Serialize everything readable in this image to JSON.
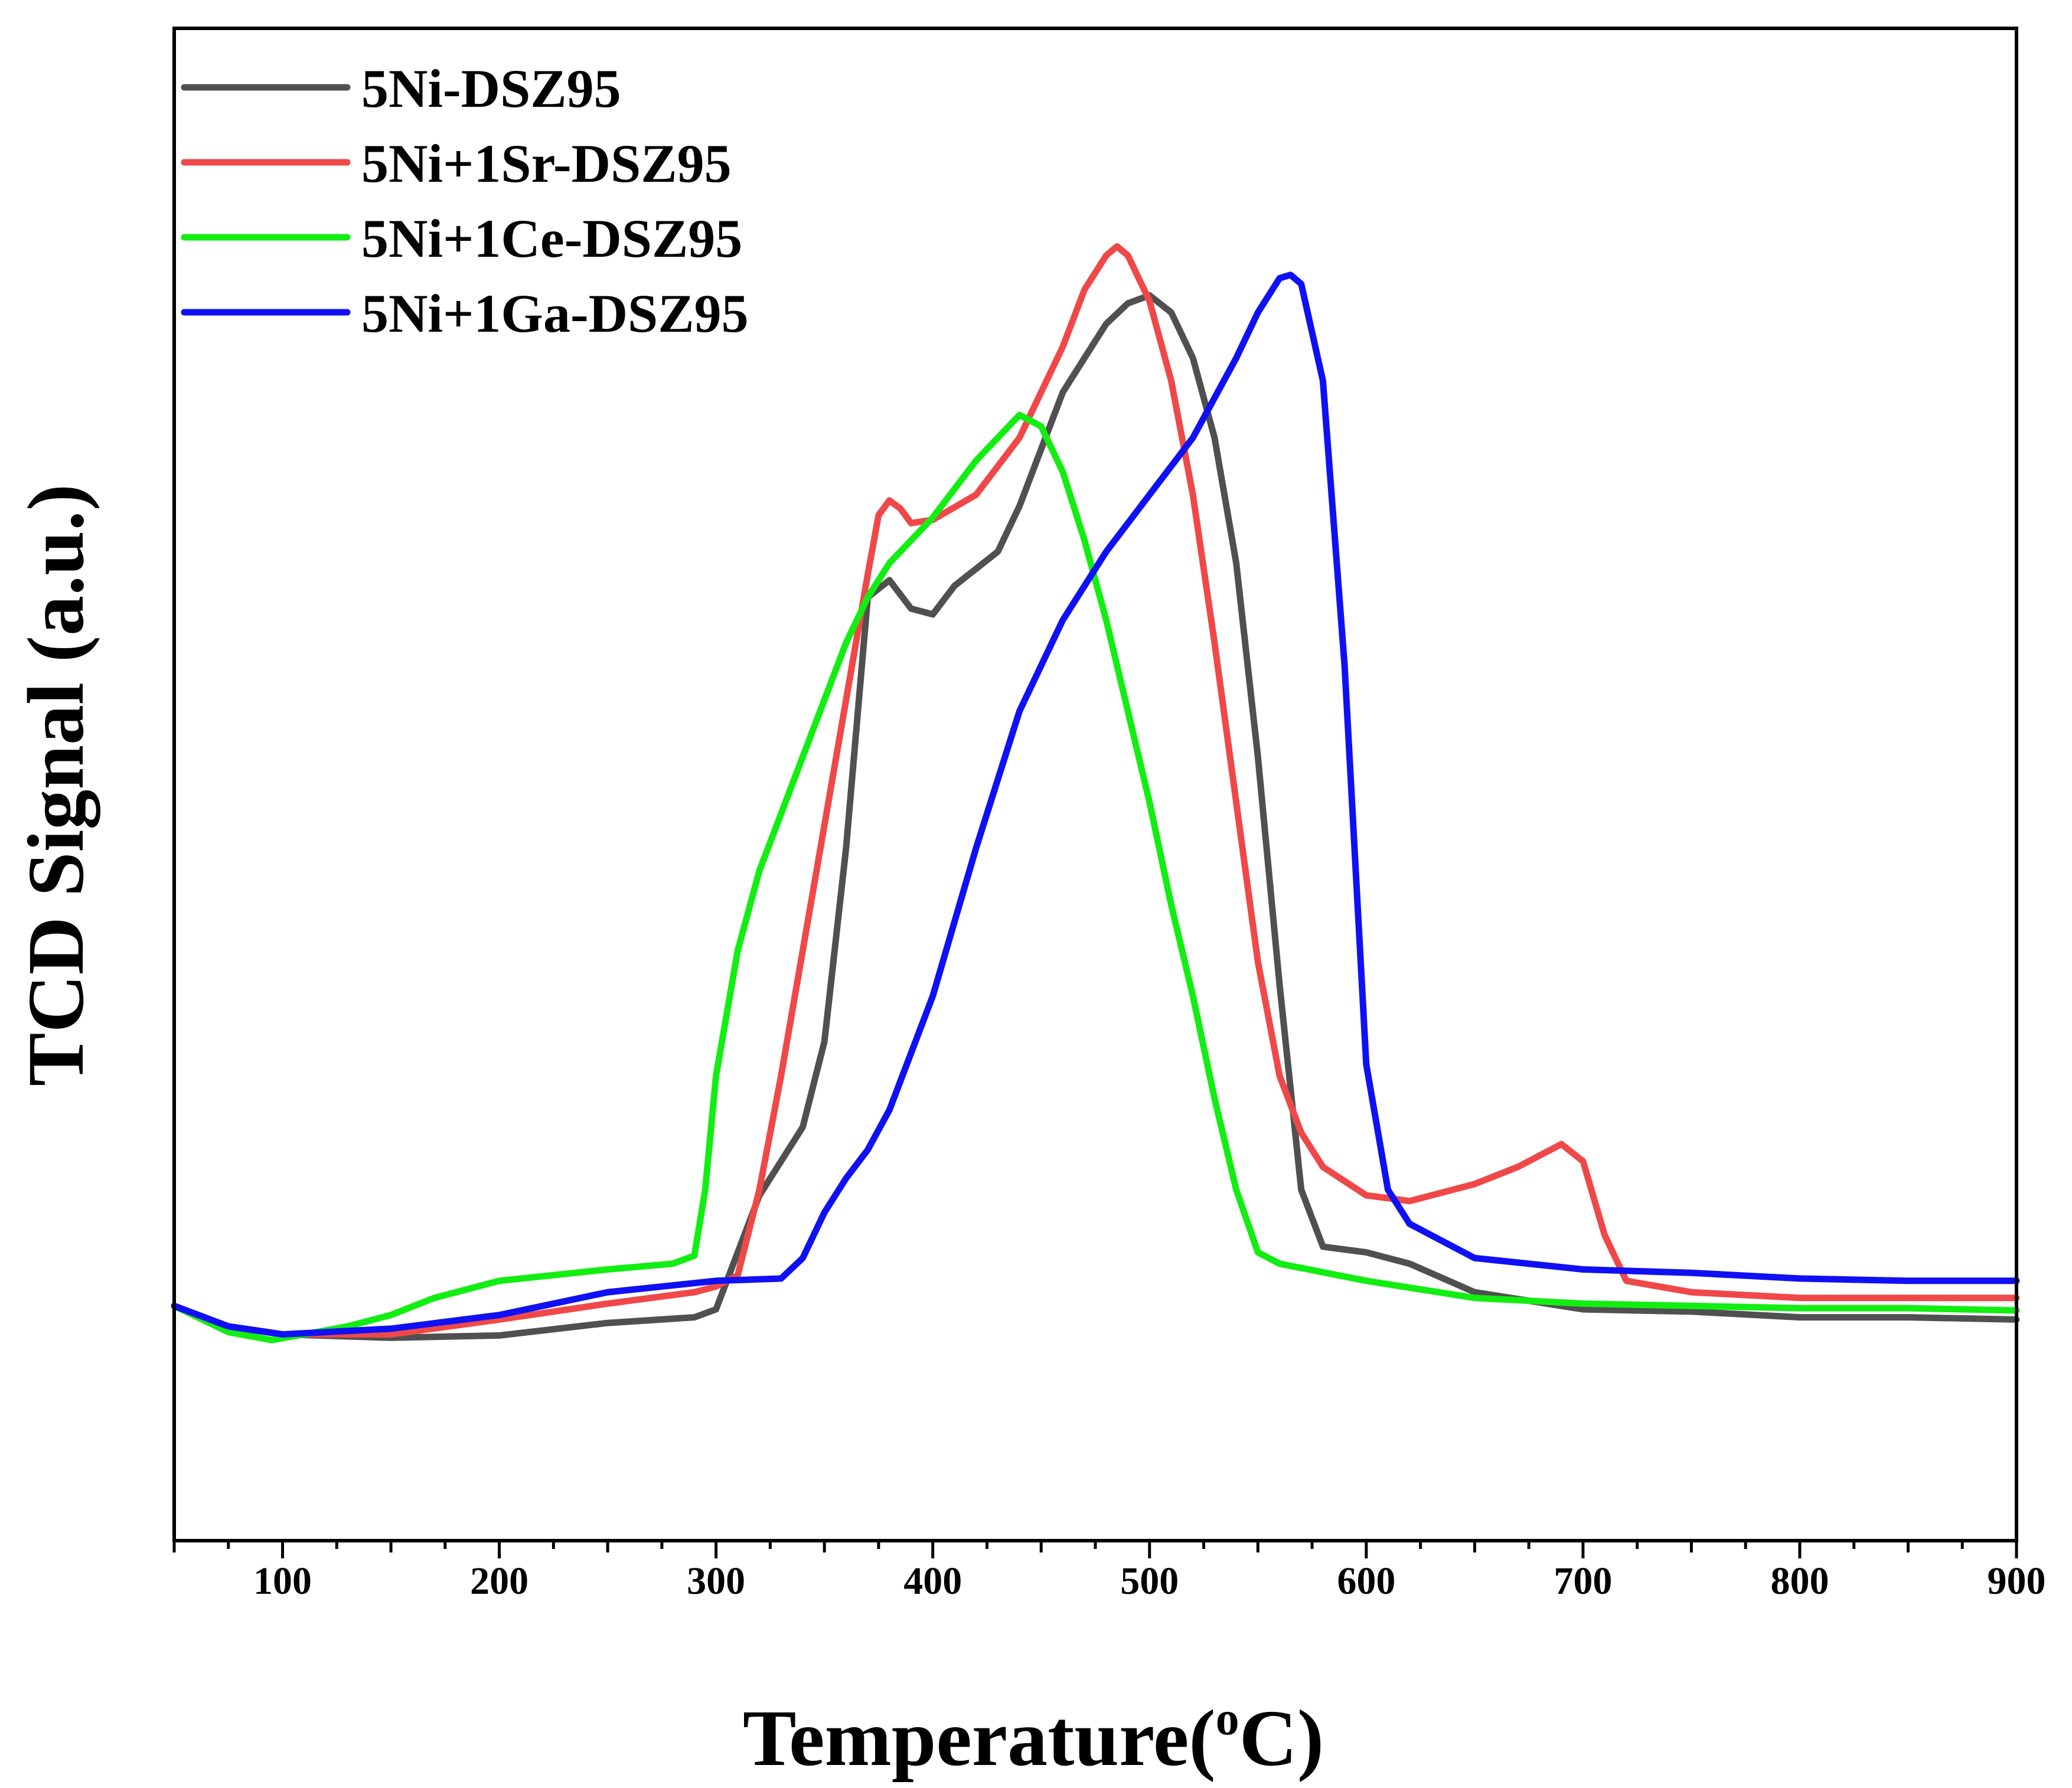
{
  "chart_data": {
    "type": "line",
    "title": "",
    "xlabel": "Temperature(",
    "xlabel_super": "o",
    "xlabel_end": "C)",
    "ylabel": "TCD Signal (a.u.)",
    "xlim": [
      50,
      900
    ],
    "ylim": [
      0,
      1
    ],
    "x_ticks": [
      100,
      200,
      300,
      400,
      500,
      600,
      700,
      800,
      900
    ],
    "y_ticks": [],
    "grid": false,
    "legend_position": "top-left",
    "series": [
      {
        "name": "5Ni-DSZ95",
        "color": "#505050",
        "x": [
          50,
          75,
          100,
          150,
          200,
          250,
          290,
          300,
          310,
          320,
          330,
          340,
          350,
          360,
          370,
          380,
          390,
          400,
          410,
          420,
          430,
          440,
          450,
          460,
          470,
          480,
          490,
          500,
          510,
          520,
          530,
          540,
          550,
          560,
          570,
          580,
          600,
          620,
          650,
          700,
          750,
          800,
          850,
          900
        ],
        "y": [
          0.118,
          0.1,
          0.093,
          0.09,
          0.092,
          0.103,
          0.108,
          0.115,
          0.165,
          0.215,
          0.245,
          0.275,
          0.35,
          0.52,
          0.74,
          0.755,
          0.73,
          0.725,
          0.75,
          0.765,
          0.78,
          0.82,
          0.87,
          0.92,
          0.95,
          0.98,
          0.998,
          1.005,
          0.99,
          0.95,
          0.88,
          0.77,
          0.6,
          0.4,
          0.22,
          0.17,
          0.165,
          0.155,
          0.13,
          0.115,
          0.113,
          0.108,
          0.108,
          0.106
        ]
      },
      {
        "name": "5Ni+1Sr-DSZ95",
        "color": "#f04848",
        "x": [
          50,
          75,
          100,
          150,
          200,
          250,
          290,
          300,
          310,
          320,
          330,
          340,
          350,
          360,
          370,
          375,
          380,
          385,
          390,
          400,
          420,
          440,
          460,
          470,
          480,
          485,
          490,
          500,
          510,
          520,
          530,
          540,
          550,
          560,
          570,
          580,
          600,
          620,
          650,
          670,
          690,
          700,
          710,
          720,
          750,
          800,
          850,
          900
        ],
        "y": [
          0.118,
          0.1,
          0.093,
          0.093,
          0.106,
          0.12,
          0.13,
          0.135,
          0.145,
          0.22,
          0.32,
          0.43,
          0.54,
          0.65,
          0.76,
          0.812,
          0.825,
          0.818,
          0.805,
          0.808,
          0.83,
          0.88,
          0.96,
          1.01,
          1.04,
          1.048,
          1.04,
          1.0,
          0.93,
          0.83,
          0.7,
          0.56,
          0.42,
          0.32,
          0.27,
          0.24,
          0.215,
          0.21,
          0.225,
          0.24,
          0.26,
          0.245,
          0.18,
          0.14,
          0.13,
          0.125,
          0.125,
          0.125
        ]
      },
      {
        "name": "5Ni+1Ce-DSZ95",
        "color": "#12ee12",
        "x": [
          50,
          75,
          95,
          110,
          130,
          150,
          170,
          200,
          250,
          280,
          290,
          295,
          300,
          310,
          320,
          330,
          340,
          350,
          360,
          370,
          380,
          390,
          400,
          420,
          440,
          450,
          460,
          470,
          480,
          490,
          500,
          510,
          520,
          530,
          540,
          550,
          560,
          600,
          650,
          700,
          750,
          800,
          850,
          900
        ],
        "y": [
          0.118,
          0.095,
          0.088,
          0.093,
          0.1,
          0.11,
          0.125,
          0.14,
          0.15,
          0.155,
          0.162,
          0.22,
          0.32,
          0.43,
          0.5,
          0.55,
          0.6,
          0.65,
          0.7,
          0.74,
          0.77,
          0.79,
          0.81,
          0.86,
          0.9,
          0.89,
          0.85,
          0.79,
          0.72,
          0.64,
          0.56,
          0.47,
          0.39,
          0.3,
          0.22,
          0.165,
          0.155,
          0.14,
          0.125,
          0.12,
          0.118,
          0.116,
          0.116,
          0.114
        ]
      },
      {
        "name": "5Ni+1Ga-DSZ95",
        "color": "#1010f5",
        "x": [
          50,
          75,
          100,
          150,
          200,
          250,
          300,
          330,
          340,
          350,
          360,
          370,
          380,
          400,
          420,
          440,
          460,
          480,
          500,
          520,
          540,
          550,
          560,
          565,
          570,
          580,
          590,
          600,
          610,
          620,
          650,
          700,
          750,
          800,
          850,
          900
        ],
        "y": [
          0.118,
          0.1,
          0.093,
          0.098,
          0.11,
          0.13,
          0.14,
          0.142,
          0.16,
          0.2,
          0.23,
          0.255,
          0.29,
          0.39,
          0.52,
          0.64,
          0.72,
          0.78,
          0.83,
          0.88,
          0.95,
          0.99,
          1.02,
          1.023,
          1.015,
          0.93,
          0.68,
          0.33,
          0.22,
          0.19,
          0.16,
          0.15,
          0.147,
          0.142,
          0.14,
          0.14
        ]
      }
    ]
  }
}
